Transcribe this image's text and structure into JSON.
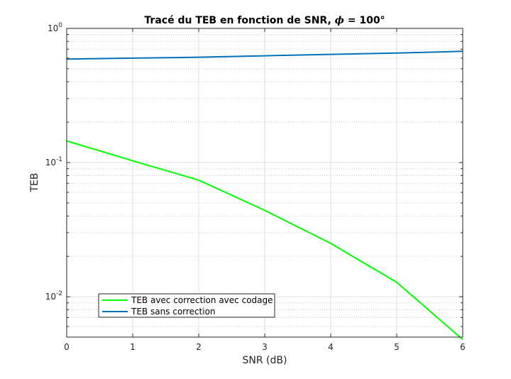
{
  "chart_data": {
    "type": "line",
    "title": "Tracé du TEB en fonction de SNR, ",
    "title_phi": "ϕ",
    "title_suffix": " = 100°",
    "xlabel": "SNR (dB)",
    "ylabel": "TEB",
    "xlim": [
      0,
      6
    ],
    "ylim": [
      0.005,
      1
    ],
    "yscale": "log",
    "grid": true,
    "minor_grid": true,
    "legend_position": "bottom-left",
    "x_ticks": [
      0,
      1,
      2,
      3,
      4,
      5,
      6
    ],
    "x_tick_labels": [
      "0",
      "1",
      "2",
      "3",
      "4",
      "5",
      "6"
    ],
    "y_tick_base": "10",
    "y_ticks": [
      0.01,
      0.1,
      1
    ],
    "y_tick_exponents": [
      "-2",
      "-1",
      "0"
    ],
    "series": [
      {
        "name": "TEB avec correction avec codage",
        "color": "#00ff00",
        "x": [
          0,
          1,
          2,
          3,
          4,
          5,
          6
        ],
        "y": [
          0.145,
          0.103,
          0.074,
          0.044,
          0.025,
          0.0128,
          0.0048
        ]
      },
      {
        "name": "TEB sans correction",
        "color": "#0072bd",
        "x": [
          0,
          1,
          2,
          3,
          4,
          5,
          6
        ],
        "y": [
          0.59,
          0.6,
          0.61,
          0.625,
          0.64,
          0.655,
          0.675
        ]
      }
    ]
  }
}
